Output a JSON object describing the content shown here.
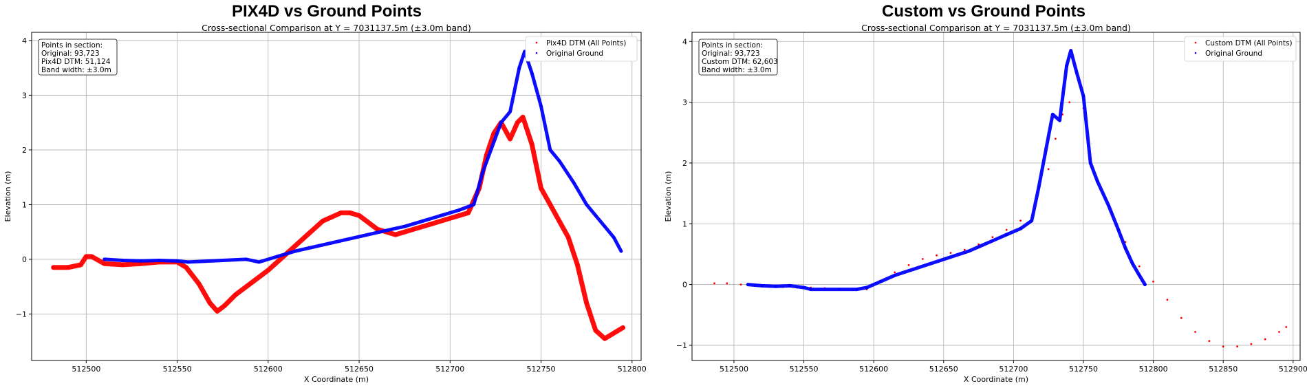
{
  "chart_data": [
    {
      "type": "scatter",
      "title": "PIX4D vs Ground Points",
      "subtitle": "Cross-sectional Comparison at Y = 7031137.5m (±3.0m band)",
      "xlabel": "X Coordinate (m)",
      "ylabel": "Elevation (m)",
      "xlim": [
        512470,
        512805
      ],
      "ylim": [
        -1.85,
        4.15
      ],
      "xticks": [
        512500,
        512550,
        512600,
        512650,
        512700,
        512750,
        512800
      ],
      "yticks": [
        -1,
        0,
        1,
        2,
        3,
        4
      ],
      "grid": true,
      "legend_position": "top-right",
      "info_box": [
        "Points in section:",
        "Original: 93,723",
        "Pix4D DTM: 51,124",
        "Band width: ±3.0m"
      ],
      "series": [
        {
          "name": "Pix4D DTM (All Points)",
          "color": "#ff0000",
          "x": [
            512482,
            512490,
            512497,
            512500,
            512503,
            512510,
            512520,
            512530,
            512540,
            512550,
            512555,
            512562,
            512568,
            512572,
            512576,
            512582,
            512590,
            512600,
            512610,
            512620,
            512630,
            512640,
            512645,
            512650,
            512660,
            512670,
            512680,
            512690,
            512700,
            512710,
            512716,
            512720,
            512724,
            512728,
            512733,
            512737,
            512740,
            512745,
            512750,
            512755,
            512760,
            512765,
            512770,
            512775,
            512780,
            512785,
            512790,
            512795
          ],
          "y": [
            -0.15,
            -0.15,
            -0.1,
            0.05,
            0.05,
            -0.08,
            -0.1,
            -0.08,
            -0.05,
            -0.05,
            -0.15,
            -0.45,
            -0.8,
            -0.95,
            -0.85,
            -0.65,
            -0.45,
            -0.2,
            0.1,
            0.4,
            0.7,
            0.85,
            0.85,
            0.8,
            0.55,
            0.45,
            0.55,
            0.65,
            0.75,
            0.85,
            1.3,
            1.9,
            2.3,
            2.5,
            2.2,
            2.5,
            2.6,
            2.1,
            1.3,
            1.0,
            0.7,
            0.4,
            -0.1,
            -0.8,
            -1.3,
            -1.45,
            -1.35,
            -1.25
          ]
        },
        {
          "name": "Original Ground",
          "color": "#0000ff",
          "x": [
            512510,
            512520,
            512530,
            512540,
            512550,
            512556,
            512588,
            512595,
            512605,
            512615,
            512668,
            512675,
            512685,
            512695,
            512705,
            512713,
            512718,
            512728,
            512733,
            512738,
            512741,
            512745,
            512750,
            512755,
            512760,
            512768,
            512775,
            512780,
            512785,
            512790,
            512794
          ],
          "y": [
            0.0,
            -0.02,
            -0.03,
            -0.02,
            -0.03,
            -0.05,
            0.0,
            -0.05,
            0.05,
            0.15,
            0.55,
            0.6,
            0.7,
            0.8,
            0.9,
            1.0,
            1.6,
            2.5,
            2.7,
            3.5,
            3.8,
            3.4,
            2.8,
            2.0,
            1.8,
            1.4,
            1.0,
            0.8,
            0.6,
            0.4,
            0.15
          ]
        }
      ]
    },
    {
      "type": "scatter",
      "title": "Custom vs Ground Points",
      "subtitle": "Cross-sectional Comparison at Y = 7031137.5m (±3.0m band)",
      "xlabel": "X Coordinate (m)",
      "ylabel": "Elevation (m)",
      "xlim": [
        512470,
        512905
      ],
      "ylim": [
        -1.25,
        4.15
      ],
      "xticks": [
        512500,
        512550,
        512600,
        512650,
        512700,
        512750,
        512800,
        512850,
        512900
      ],
      "yticks": [
        -1,
        0,
        1,
        2,
        3,
        4
      ],
      "grid": true,
      "legend_position": "top-right",
      "info_box": [
        "Points in section:",
        "Original: 93,723",
        "Custom DTM: 62,603",
        "Band width: ±3.0m"
      ],
      "series": [
        {
          "name": "Custom DTM (All Points)",
          "color": "#ff0000",
          "x": [
            512486,
            512495,
            512505,
            512515,
            512525,
            512535,
            512545,
            512555,
            512565,
            512575,
            512585,
            512595,
            512605,
            512615,
            512625,
            512635,
            512645,
            512655,
            512665,
            512675,
            512685,
            512695,
            512705,
            512715,
            512725,
            512730,
            512735,
            512740,
            512750,
            512760,
            512770,
            512780,
            512790,
            512800,
            512810,
            512820,
            512830,
            512840,
            512850,
            512860,
            512870,
            512880,
            512890,
            512895
          ],
          "y": [
            0.02,
            0.02,
            0.0,
            -0.02,
            -0.03,
            -0.04,
            -0.05,
            -0.05,
            -0.06,
            -0.07,
            -0.09,
            -0.08,
            0.05,
            0.2,
            0.32,
            0.42,
            0.48,
            0.52,
            0.57,
            0.66,
            0.78,
            0.9,
            1.05,
            1.25,
            1.9,
            2.4,
            2.8,
            3.0,
            2.9,
            1.7,
            1.2,
            0.7,
            0.3,
            0.05,
            -0.25,
            -0.55,
            -0.78,
            -0.93,
            -1.02,
            -1.02,
            -0.98,
            -0.9,
            -0.78,
            -0.7
          ]
        },
        {
          "name": "Original Ground",
          "color": "#0000ff",
          "x": [
            512510,
            512520,
            512530,
            512540,
            512550,
            512555,
            512588,
            512595,
            512605,
            512615,
            512668,
            512675,
            512685,
            512695,
            512705,
            512713,
            512718,
            512728,
            512733,
            512738,
            512741,
            512745,
            512750,
            512755,
            512760,
            512768,
            512775,
            512780,
            512785,
            512790,
            512794
          ],
          "y": [
            0.0,
            -0.02,
            -0.03,
            -0.02,
            -0.05,
            -0.08,
            -0.08,
            -0.05,
            0.05,
            0.15,
            0.55,
            0.62,
            0.72,
            0.82,
            0.92,
            1.05,
            1.6,
            2.8,
            2.7,
            3.6,
            3.85,
            3.5,
            3.1,
            2.0,
            1.7,
            1.3,
            0.9,
            0.6,
            0.35,
            0.15,
            0.0
          ]
        }
      ]
    }
  ]
}
